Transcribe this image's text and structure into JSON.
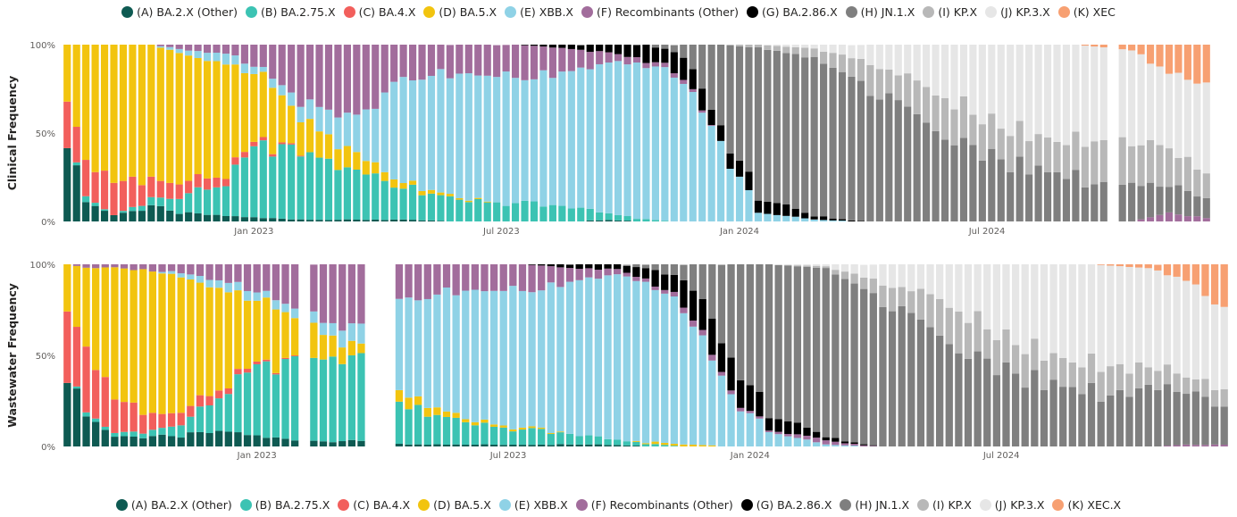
{
  "colors": {
    "A": "#0e5a52",
    "B": "#3cc3b3",
    "C": "#f25f5c",
    "D": "#f2c40f",
    "E": "#8fd2e6",
    "F": "#a26d9c",
    "G": "#000000",
    "H": "#7f7f7f",
    "I": "#b8b8b8",
    "J": "#e6e6e6",
    "K": "#f7a072"
  },
  "legend_top": [
    {
      "key": "A",
      "label": "(A) BA.2.X (Other)"
    },
    {
      "key": "B",
      "label": "(B) BA.2.75.X"
    },
    {
      "key": "C",
      "label": "(C) BA.4.X"
    },
    {
      "key": "D",
      "label": "(D) BA.5.X"
    },
    {
      "key": "E",
      "label": "(E) XBB.X"
    },
    {
      "key": "F",
      "label": "(F) Recombinants (Other)"
    },
    {
      "key": "G",
      "label": "(G) BA.2.86.X"
    },
    {
      "key": "H",
      "label": "(H) JN.1.X"
    },
    {
      "key": "I",
      "label": "(I) KP.X"
    },
    {
      "key": "J",
      "label": "(J) KP.3.X"
    },
    {
      "key": "K",
      "label": "(K) XEC"
    }
  ],
  "legend_bottom": [
    {
      "key": "A",
      "label": "(A) BA.2.X (Other)"
    },
    {
      "key": "B",
      "label": "(B) BA.2.75.X"
    },
    {
      "key": "C",
      "label": "(C) BA.4.X"
    },
    {
      "key": "D",
      "label": "(D) BA.5.X"
    },
    {
      "key": "E",
      "label": "(E) XBB.X"
    },
    {
      "key": "F",
      "label": "(F) Recombinants (Other)"
    },
    {
      "key": "G",
      "label": "(G) BA.2.86.X"
    },
    {
      "key": "H",
      "label": "(H) JN.1.X"
    },
    {
      "key": "I",
      "label": "(I) KP.X"
    },
    {
      "key": "J",
      "label": "(J) KP.3.X"
    },
    {
      "key": "K",
      "label": "(K) XEC.X"
    }
  ],
  "chart_data": [
    {
      "type": "bar",
      "stacked": true,
      "ylabel": "Clinical Frequency",
      "ylim": [
        0,
        100
      ],
      "yticks": [
        "0%",
        "50%",
        "100%"
      ],
      "xticks": [
        "Jan 2023",
        "Jul 2023",
        "Jan 2024",
        "Jul 2024"
      ],
      "xtick_positions": [
        20,
        46.5,
        72,
        98.5
      ],
      "n_bars": 123,
      "stack_order": [
        "A",
        "B",
        "C",
        "D",
        "E",
        "F",
        "G",
        "H",
        "I",
        "J",
        "K"
      ],
      "gaps": [
        112
      ],
      "anchors": [
        {
          "x": 0,
          "A": 43,
          "B": 0,
          "C": 27,
          "D": 30,
          "E": 0,
          "F": 0
        },
        {
          "x": 2,
          "A": 12,
          "B": 3,
          "C": 20,
          "D": 65,
          "E": 0,
          "F": 0
        },
        {
          "x": 5,
          "A": 4,
          "B": 0,
          "C": 20,
          "D": 76,
          "E": 0,
          "F": 0
        },
        {
          "x": 9,
          "A": 8,
          "B": 4,
          "C": 10,
          "D": 78,
          "E": 0,
          "F": 0
        },
        {
          "x": 13,
          "A": 4,
          "B": 10,
          "C": 7,
          "D": 73,
          "E": 3,
          "F": 3
        },
        {
          "x": 17,
          "A": 3,
          "B": 18,
          "C": 4,
          "D": 64,
          "E": 6,
          "F": 5
        },
        {
          "x": 21,
          "A": 2,
          "B": 42,
          "C": 2,
          "D": 38,
          "E": 3,
          "F": 13
        },
        {
          "x": 26,
          "A": 1,
          "B": 37,
          "C": 0,
          "D": 17,
          "E": 10,
          "F": 35
        },
        {
          "x": 32,
          "A": 1,
          "B": 28,
          "C": 0,
          "D": 8,
          "E": 26,
          "F": 37
        },
        {
          "x": 36,
          "A": 1,
          "B": 18,
          "C": 0,
          "D": 3,
          "E": 60,
          "F": 18
        },
        {
          "x": 42,
          "A": 0,
          "B": 12,
          "C": 0,
          "D": 1,
          "E": 70,
          "F": 17
        },
        {
          "x": 48,
          "A": 0,
          "B": 10,
          "C": 0,
          "D": 0,
          "E": 72,
          "F": 18
        },
        {
          "x": 54,
          "A": 0,
          "B": 8,
          "C": 0,
          "D": 0,
          "E": 78,
          "F": 12,
          "G": 2
        },
        {
          "x": 58,
          "A": 1,
          "B": 4,
          "C": 0,
          "D": 0,
          "E": 84,
          "F": 6,
          "G": 5
        },
        {
          "x": 62,
          "A": 0,
          "B": 1,
          "C": 0,
          "D": 0,
          "E": 88,
          "F": 3,
          "G": 8
        },
        {
          "x": 66,
          "A": 0,
          "B": 0,
          "C": 0,
          "D": 0,
          "E": 80,
          "F": 2,
          "G": 12,
          "H": 6
        },
        {
          "x": 70,
          "A": 0,
          "B": 0,
          "C": 0,
          "D": 0,
          "E": 45,
          "F": 0,
          "G": 10,
          "H": 45
        },
        {
          "x": 74,
          "E": 5,
          "G": 8,
          "H": 85,
          "I": 2
        },
        {
          "x": 80,
          "E": 1,
          "G": 2,
          "H": 90,
          "I": 5,
          "J": 2
        },
        {
          "x": 86,
          "H": 75,
          "I": 15,
          "J": 10
        },
        {
          "x": 92,
          "H": 55,
          "I": 20,
          "J": 25
        },
        {
          "x": 100,
          "H": 35,
          "I": 20,
          "J": 45
        },
        {
          "x": 108,
          "H": 25,
          "I": 20,
          "J": 55
        },
        {
          "x": 114,
          "H": 20,
          "I": 25,
          "J": 52,
          "K": 3
        },
        {
          "x": 118,
          "F": 5,
          "H": 15,
          "I": 20,
          "J": 45,
          "K": 15
        },
        {
          "x": 122,
          "F": 2,
          "H": 12,
          "I": 15,
          "J": 46,
          "K": 25
        }
      ]
    },
    {
      "type": "bar",
      "stacked": true,
      "ylabel": "Wastewater Frequency",
      "ylim": [
        0,
        100
      ],
      "yticks": [
        "0%",
        "50%",
        "100%"
      ],
      "xticks": [
        "Jan 2023",
        "Jul 2023",
        "Jan 2024",
        "Jul 2024"
      ],
      "xtick_positions": [
        20,
        46.5,
        72,
        98.5
      ],
      "n_bars": 123,
      "stack_order": [
        "A",
        "B",
        "C",
        "D",
        "E",
        "F",
        "G",
        "H",
        "I",
        "J",
        "K"
      ],
      "gaps": [
        25,
        32,
        33,
        34
      ],
      "anchors": [
        {
          "x": 0,
          "A": 36,
          "B": 0,
          "C": 40,
          "D": 24,
          "E": 0,
          "F": 0
        },
        {
          "x": 2,
          "A": 18,
          "B": 2,
          "C": 35,
          "D": 43,
          "E": 0,
          "F": 2
        },
        {
          "x": 5,
          "A": 6,
          "B": 2,
          "C": 20,
          "D": 70,
          "E": 0,
          "F": 2
        },
        {
          "x": 9,
          "A": 5,
          "B": 3,
          "C": 8,
          "D": 81,
          "E": 0,
          "F": 3
        },
        {
          "x": 13,
          "A": 6,
          "B": 8,
          "C": 6,
          "D": 72,
          "E": 3,
          "F": 5
        },
        {
          "x": 17,
          "A": 8,
          "B": 22,
          "C": 3,
          "D": 52,
          "E": 5,
          "F": 10
        },
        {
          "x": 21,
          "A": 5,
          "B": 40,
          "C": 1,
          "D": 35,
          "E": 4,
          "F": 15
        },
        {
          "x": 27,
          "A": 3,
          "B": 45,
          "C": 0,
          "D": 14,
          "E": 6,
          "F": 32
        },
        {
          "x": 31,
          "A": 3,
          "B": 50,
          "C": 0,
          "D": 5,
          "E": 12,
          "F": 30
        },
        {
          "x": 36,
          "A": 1,
          "B": 20,
          "C": 0,
          "D": 6,
          "E": 55,
          "F": 18
        },
        {
          "x": 42,
          "A": 1,
          "B": 12,
          "C": 0,
          "D": 2,
          "E": 70,
          "F": 15
        },
        {
          "x": 48,
          "A": 1,
          "B": 8,
          "C": 0,
          "D": 1,
          "E": 76,
          "F": 14
        },
        {
          "x": 54,
          "A": 1,
          "B": 5,
          "C": 0,
          "D": 0,
          "E": 86,
          "F": 6,
          "G": 2
        },
        {
          "x": 58,
          "A": 1,
          "B": 3,
          "C": 0,
          "D": 0,
          "E": 90,
          "F": 3,
          "G": 3
        },
        {
          "x": 62,
          "A": 0,
          "B": 1,
          "C": 0,
          "D": 1,
          "E": 86,
          "F": 2,
          "G": 7,
          "H": 3
        },
        {
          "x": 66,
          "A": 0,
          "B": 0,
          "C": 0,
          "D": 1,
          "E": 68,
          "F": 3,
          "G": 16,
          "H": 12
        },
        {
          "x": 70,
          "A": 0,
          "B": 0,
          "C": 0,
          "D": 0,
          "E": 28,
          "F": 2,
          "G": 20,
          "H": 50
        },
        {
          "x": 74,
          "E": 8,
          "F": 1,
          "G": 8,
          "H": 83
        },
        {
          "x": 80,
          "E": 1,
          "F": 2,
          "G": 2,
          "H": 93,
          "I": 1,
          "J": 1
        },
        {
          "x": 86,
          "H": 80,
          "I": 10,
          "J": 10
        },
        {
          "x": 92,
          "H": 60,
          "I": 20,
          "J": 20
        },
        {
          "x": 100,
          "H": 40,
          "I": 18,
          "J": 42
        },
        {
          "x": 108,
          "H": 30,
          "I": 15,
          "J": 55
        },
        {
          "x": 114,
          "H": 32,
          "I": 12,
          "J": 54,
          "K": 2
        },
        {
          "x": 118,
          "F": 1,
          "H": 28,
          "I": 8,
          "J": 55,
          "K": 8
        },
        {
          "x": 122,
          "F": 1,
          "H": 22,
          "I": 10,
          "J": 40,
          "K": 27
        }
      ]
    }
  ]
}
